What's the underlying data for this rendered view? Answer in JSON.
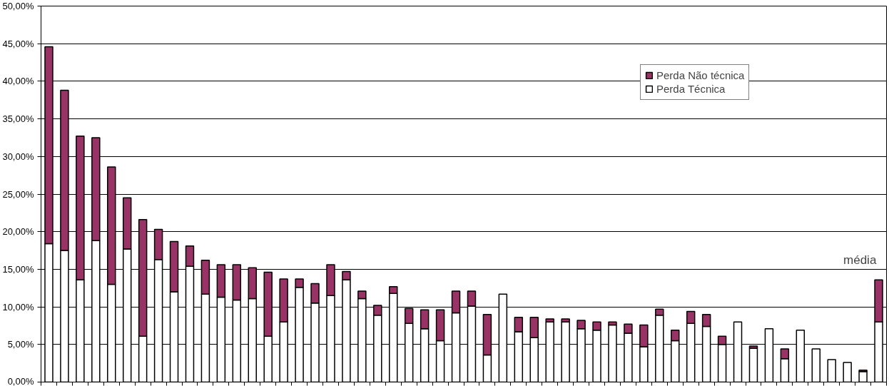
{
  "chart_data": {
    "type": "bar",
    "stacked": true,
    "categories": [
      null,
      null,
      null,
      null,
      null,
      null,
      null,
      null,
      null,
      null,
      null,
      null,
      null,
      null,
      null,
      null,
      null,
      null,
      null,
      null,
      null,
      null,
      null,
      null,
      null,
      null,
      null,
      null,
      null,
      null,
      null,
      null,
      null,
      null,
      null,
      null,
      null,
      null,
      null,
      null,
      null,
      null,
      null,
      null,
      null,
      null,
      null,
      null,
      null,
      null,
      null,
      null,
      null,
      null
    ],
    "series": [
      {
        "name": "Perda Técnica",
        "color": "#ffffff",
        "values": [
          18.4,
          17.5,
          13.6,
          18.8,
          13.0,
          17.7,
          6.1,
          16.3,
          12.0,
          15.4,
          11.7,
          11.3,
          10.9,
          11.1,
          6.1,
          8.0,
          12.6,
          10.5,
          11.5,
          13.6,
          11.1,
          8.9,
          11.8,
          7.8,
          7.1,
          5.5,
          9.2,
          10.1,
          3.6,
          11.7,
          6.7,
          5.9,
          8.0,
          8.0,
          7.1,
          6.9,
          7.6,
          6.5,
          4.7,
          8.9,
          5.5,
          7.8,
          7.4,
          5.0,
          8.0,
          4.5,
          7.1,
          3.1,
          6.9,
          4.4,
          3.0,
          2.6,
          1.4,
          8.0
        ]
      },
      {
        "name": "Perda Não técnica",
        "color": "#993366",
        "values": [
          26.2,
          21.3,
          19.1,
          13.7,
          15.6,
          6.8,
          15.5,
          4.0,
          6.7,
          2.7,
          4.5,
          4.3,
          4.7,
          4.1,
          8.5,
          5.7,
          1.1,
          2.6,
          4.1,
          1.1,
          1.0,
          1.3,
          0.9,
          2.0,
          2.5,
          4.1,
          2.9,
          2.0,
          5.4,
          null,
          1.9,
          2.7,
          0.4,
          0.4,
          1.1,
          1.1,
          0.4,
          1.2,
          2.9,
          0.8,
          1.4,
          1.6,
          1.6,
          1.1,
          null,
          0.3,
          null,
          1.3,
          null,
          null,
          null,
          null,
          0.2,
          5.6
        ]
      }
    ],
    "ylim": [
      0,
      50
    ],
    "yticks": [
      {
        "value": 0,
        "label": "0,00%"
      },
      {
        "value": 5,
        "label": "5,00%"
      },
      {
        "value": 10,
        "label": "10,00%"
      },
      {
        "value": 15,
        "label": "15,00%"
      },
      {
        "value": 20,
        "label": "20,00%"
      },
      {
        "value": 25,
        "label": "25,00%"
      },
      {
        "value": 30,
        "label": "30,00%"
      },
      {
        "value": 35,
        "label": "35,00%"
      },
      {
        "value": 40,
        "label": "40,00%"
      },
      {
        "value": 45,
        "label": "45,00%"
      },
      {
        "value": 50,
        "label": "50,00%"
      }
    ],
    "grid": "y",
    "legend": "top right",
    "tick_labels": "y",
    "annotations": [
      "média"
    ]
  }
}
